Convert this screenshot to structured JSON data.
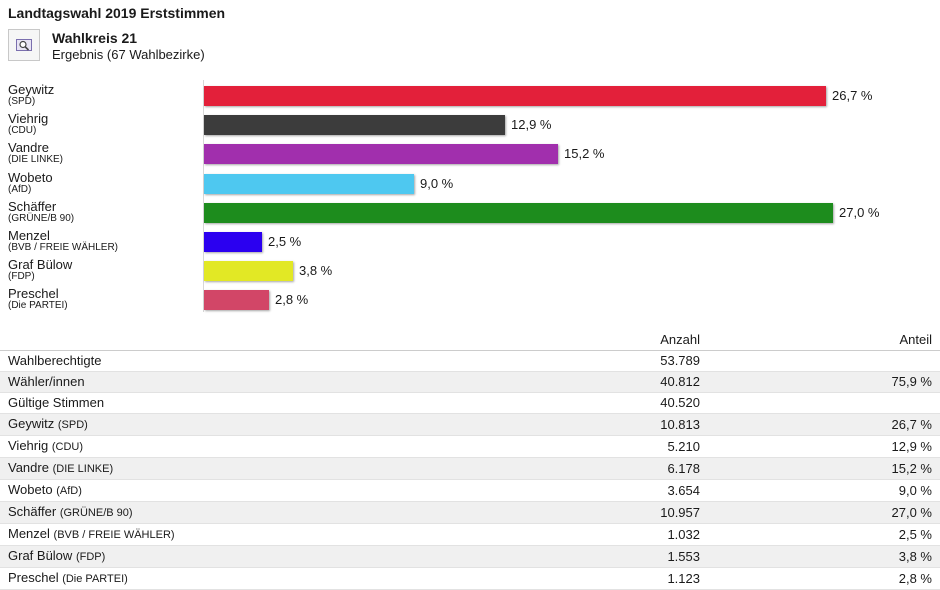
{
  "header": {
    "title": "Landtagswahl 2019 Erststimmen",
    "wahlkreis": "Wahlkreis 21",
    "subtitle": "Ergebnis (67 Wahlbezirke)",
    "icon": "map-search-icon"
  },
  "chart_data": {
    "type": "bar",
    "orientation": "horizontal",
    "categories": [
      {
        "name": "Geywitz",
        "party": "(SPD)"
      },
      {
        "name": "Viehrig",
        "party": "(CDU)"
      },
      {
        "name": "Vandre",
        "party": "(DIE LINKE)"
      },
      {
        "name": "Wobeto",
        "party": "(AfD)"
      },
      {
        "name": "Schäffer",
        "party": "(GRÜNE/B 90)"
      },
      {
        "name": "Menzel",
        "party": "(BVB / FREIE WÄHLER)"
      },
      {
        "name": "Graf Bülow",
        "party": "(FDP)"
      },
      {
        "name": "Preschel",
        "party": "(Die PARTEI)"
      }
    ],
    "values": [
      26.7,
      12.9,
      15.2,
      9.0,
      27.0,
      2.5,
      3.8,
      2.8
    ],
    "value_labels": [
      "26,7 %",
      "12,9 %",
      "15,2 %",
      "9,0 %",
      "27,0 %",
      "2,5 %",
      "3,8 %",
      "2,8 %"
    ],
    "colors": [
      "#e3203a",
      "#3c3c3c",
      "#a12fad",
      "#4ec8f0",
      "#1d8c1d",
      "#2b00f0",
      "#e2e825",
      "#d24667"
    ],
    "xlim": [
      0,
      27.0
    ],
    "grid": false,
    "legend": "none"
  },
  "table": {
    "headers": {
      "name": "",
      "count": "Anzahl",
      "share": "Anteil"
    },
    "rows": [
      {
        "name": "Wahlberechtigte",
        "party": "",
        "count": "53.789",
        "share": ""
      },
      {
        "name": "Wähler/innen",
        "party": "",
        "count": "40.812",
        "share": "75,9 %"
      },
      {
        "name": "Gültige Stimmen",
        "party": "",
        "count": "40.520",
        "share": ""
      },
      {
        "name": "Geywitz",
        "party": "(SPD)",
        "count": "10.813",
        "share": "26,7 %"
      },
      {
        "name": "Viehrig",
        "party": "(CDU)",
        "count": "5.210",
        "share": "12,9 %"
      },
      {
        "name": "Vandre",
        "party": "(DIE LINKE)",
        "count": "6.178",
        "share": "15,2 %"
      },
      {
        "name": "Wobeto",
        "party": "(AfD)",
        "count": "3.654",
        "share": "9,0 %"
      },
      {
        "name": "Schäffer",
        "party": "(GRÜNE/B 90)",
        "count": "10.957",
        "share": "27,0 %"
      },
      {
        "name": "Menzel",
        "party": "(BVB / FREIE WÄHLER)",
        "count": "1.032",
        "share": "2,5 %"
      },
      {
        "name": "Graf Bülow",
        "party": "(FDP)",
        "count": "1.553",
        "share": "3,8 %"
      },
      {
        "name": "Preschel",
        "party": "(Die PARTEI)",
        "count": "1.123",
        "share": "2,8 %"
      }
    ]
  }
}
